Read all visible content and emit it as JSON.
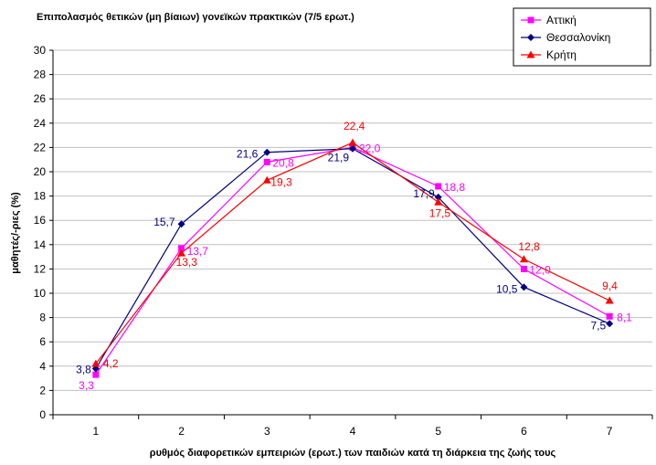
{
  "chart_data": {
    "type": "line",
    "title": "Επιπολασμός θετικών (μη βίαιων) γονεϊκών πρακτικών (7/5 ερωτ.)",
    "xlabel": "ρυθμός διαφορετικών εμπειριών (ερωτ.) των παιδιών κατά τη διάρκεια της ζωής τους",
    "ylabel": "μαθητές/-ριες  (%)",
    "x": [
      1,
      2,
      3,
      4,
      5,
      6,
      7
    ],
    "x_tick_labels": [
      "1",
      "2",
      "3",
      "4",
      "5",
      "6",
      "7"
    ],
    "ylim": [
      0,
      30
    ],
    "y_ticks": [
      0,
      2,
      4,
      6,
      8,
      10,
      12,
      14,
      16,
      18,
      20,
      22,
      24,
      26,
      28,
      30
    ],
    "grid": true,
    "legend_position": "top-right",
    "series": [
      {
        "name": "Αττική",
        "color": "#ff00ff",
        "marker": "square",
        "values": [
          3.3,
          13.7,
          20.8,
          22.0,
          18.8,
          12.0,
          8.1
        ],
        "labels": [
          "3,3",
          "13,7",
          "20,8",
          "22,0",
          "18,8",
          "12,0",
          "8,1"
        ]
      },
      {
        "name": "Θεσσαλονίκη",
        "color": "#000080",
        "marker": "diamond",
        "values": [
          3.8,
          15.7,
          21.6,
          21.9,
          17.9,
          10.5,
          7.5
        ],
        "labels": [
          "3,8",
          "15,7",
          "21,6",
          "21,9",
          "17,9",
          "10,5",
          "7,5"
        ]
      },
      {
        "name": "Κρήτη",
        "color": "#ff0000",
        "marker": "triangle",
        "values": [
          4.2,
          13.3,
          19.3,
          22.4,
          17.5,
          12.8,
          9.4
        ],
        "labels": [
          "4,2",
          "13,3",
          "19,3",
          "22,4",
          "17,5",
          "12,8",
          "9,4"
        ]
      }
    ]
  }
}
